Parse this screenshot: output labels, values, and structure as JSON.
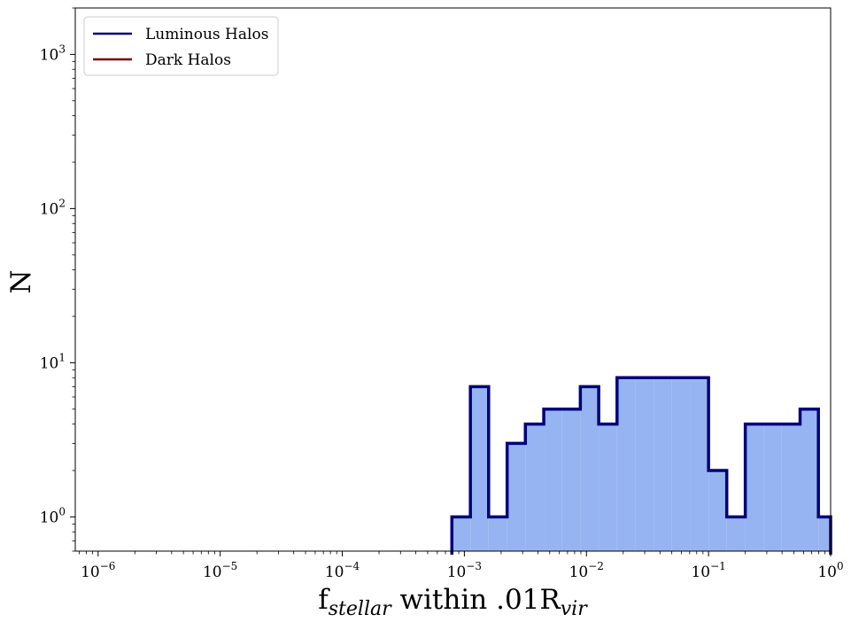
{
  "chart_data": {
    "type": "histogram",
    "xscale": "log",
    "yscale": "log",
    "xlim": [
      6.5e-07,
      1
    ],
    "ylim": [
      0.6,
      2000
    ],
    "xlabel": {
      "main": "f",
      "sub": "stellar",
      "mid": " within .01R",
      "sub2": "vir"
    },
    "ylabel": "N",
    "x_ticks": [
      {
        "base": "10",
        "exp": "−6",
        "value": 1e-06
      },
      {
        "base": "10",
        "exp": "−5",
        "value": 1e-05
      },
      {
        "base": "10",
        "exp": "−4",
        "value": 0.0001
      },
      {
        "base": "10",
        "exp": "−3",
        "value": 0.001
      },
      {
        "base": "10",
        "exp": "−2",
        "value": 0.01
      },
      {
        "base": "10",
        "exp": "−1",
        "value": 0.1
      },
      {
        "base": "10",
        "exp": "0",
        "value": 1
      }
    ],
    "y_ticks": [
      {
        "base": "10",
        "exp": "0",
        "value": 1
      },
      {
        "base": "10",
        "exp": "1",
        "value": 10
      },
      {
        "base": "10",
        "exp": "2",
        "value": 100
      },
      {
        "base": "10",
        "exp": "3",
        "value": 1000
      }
    ],
    "legend": {
      "position": "upper-left",
      "entries": [
        {
          "label": "Luminous Halos",
          "color": "#00007a"
        },
        {
          "label": "Dark Halos",
          "color": "#7a0000"
        }
      ]
    },
    "series": [
      {
        "name": "Luminous Halos",
        "fill_color": "#95b4f1",
        "edge_color": "#00007a",
        "bin_edges": [
          0.00079,
          0.00112,
          0.00158,
          0.00224,
          0.00316,
          0.00447,
          0.00631,
          0.00891,
          0.0126,
          0.0178,
          0.0251,
          0.0355,
          0.0501,
          0.0708,
          0.1,
          0.141,
          0.2,
          0.282,
          0.398,
          0.562,
          0.794,
          1.0
        ],
        "counts": [
          1,
          7,
          1,
          3,
          4,
          5,
          5,
          7,
          4,
          8,
          8,
          8,
          8,
          8,
          2,
          1,
          4,
          4,
          4,
          5,
          1
        ]
      },
      {
        "name": "Dark Halos",
        "edge_color": "#7a0000",
        "bin_edges": [],
        "counts": []
      }
    ]
  }
}
